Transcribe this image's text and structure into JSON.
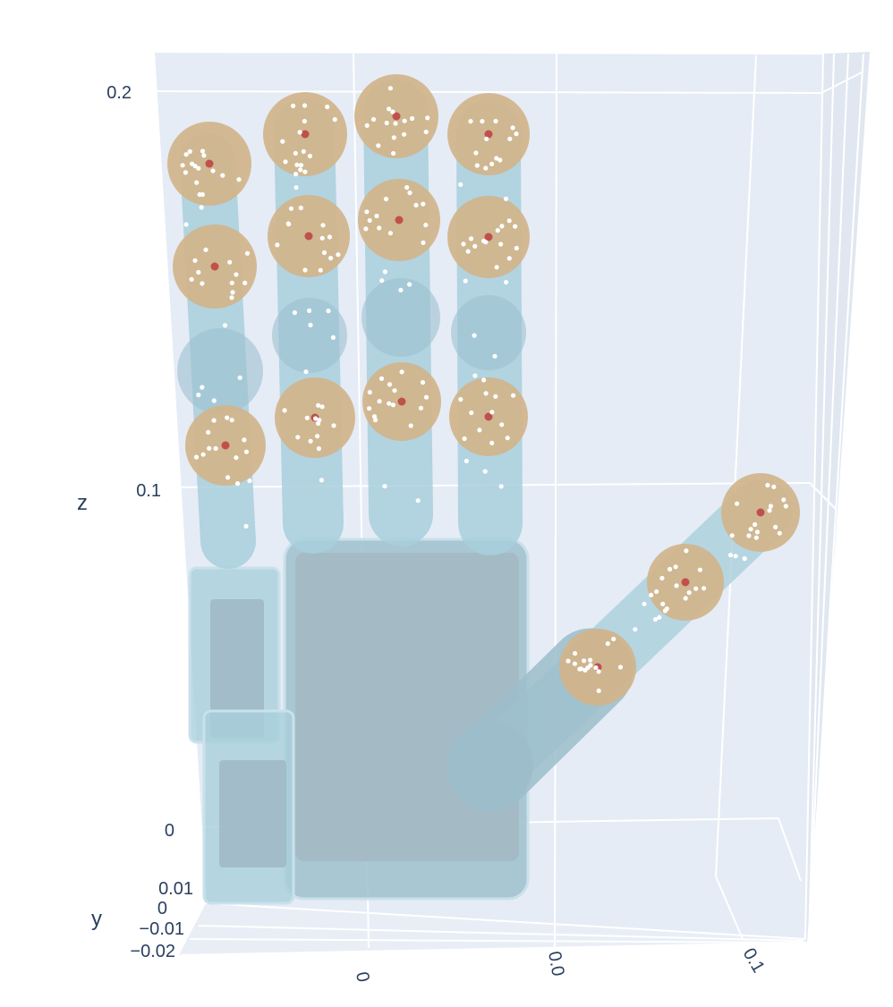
{
  "chart_data": {
    "type": "scatter3d",
    "title": "",
    "axes": {
      "x": {
        "label": "",
        "tick_labels": [
          "0",
          "0.0",
          "0.1"
        ]
      },
      "y": {
        "label": "y",
        "tick_labels": [
          "0.01",
          "0",
          "−0.01",
          "−0.02"
        ]
      },
      "z": {
        "label": "z",
        "tick_labels": [
          "0.2",
          "0.1",
          "0"
        ]
      }
    },
    "colors": {
      "scene_background": "#e5ecf6",
      "grid": "#ffffff",
      "hand_mesh": "#a9cfdc",
      "sphere": "#d1b48a",
      "sphere_center": "#c0504d",
      "surface_points": "#ffffff"
    },
    "components": {
      "palm": "box",
      "fingers": 4,
      "thumb": 1,
      "finger_segments": "capsule",
      "joint_spheres": 15
    }
  }
}
